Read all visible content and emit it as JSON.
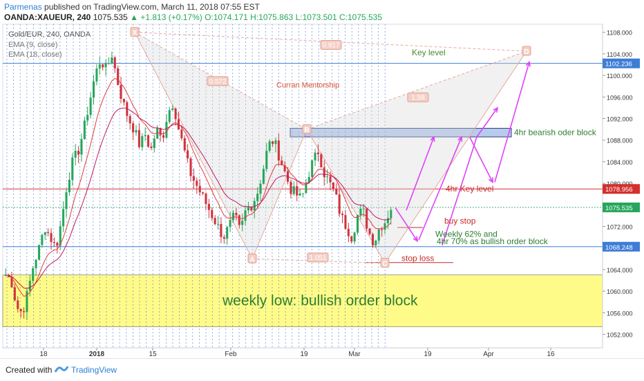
{
  "header": {
    "author": "Parmenas",
    "published_text": "published on TradingView.com, March 11, 2018 07:55 EST",
    "symbol": "OANDA:XAUEUR, 240",
    "last_price": "1075.535",
    "change": "+1.813 (+0.17%)",
    "ohlc": {
      "o": "O:1074.171",
      "h": "H:1075.863",
      "l": "L:1073.501",
      "c": "C:1075.535"
    }
  },
  "legend": {
    "title": "Gold/EUR, 240, OANDA",
    "ema9": "EMA (9, close)",
    "ema18": "EMA (18, close)"
  },
  "footer": {
    "created_with": "Created with",
    "brand": "TradingView"
  },
  "colors": {
    "bull": "#26a65b",
    "bear": "#d0333c",
    "ema9": "#e23b3b",
    "ema18": "#c2185b",
    "zone": "#fffb88",
    "bearish_zone": "#b7cbef",
    "blue_line": "#3d7dd6",
    "red_line": "#d32f2f",
    "arrow": "#e040fb",
    "dotted": "#3f6fd6"
  },
  "chart_data": {
    "type": "candlestick",
    "title": "Gold/EUR, 240, OANDA",
    "y_range": [
      1050,
      1109
    ],
    "y_ticks": [
      "1108.000",
      "1104.000",
      "1100.000",
      "1096.000",
      "1092.000",
      "1088.000",
      "1084.000",
      "1080.000",
      "1076.000",
      "1072.000",
      "1068.000",
      "1064.000",
      "1060.000",
      "1056.000",
      "1052.000"
    ],
    "x_ticks": [
      "18",
      "2018",
      "15",
      "Feb",
      "19",
      "Mar",
      "19",
      "Apr",
      "16"
    ],
    "price_labels": {
      "key_level": "1102.236",
      "resistance": "1078.956",
      "last": "1075.535",
      "support": "1068.248"
    },
    "price_path": [
      [
        1063.0,
        1062.0,
        1057.0,
        1056.0,
        1060.0,
        1065.0,
        1068.0,
        1072.0,
        1070.0,
        1068.0,
        1073.0,
        1080.0,
        1084.0,
        1086.0,
        1090.0,
        1095.0,
        1100.0,
        1103.0,
        1101.0,
        1104.0,
        1099.0,
        1095.0,
        1092.0,
        1090.0,
        1087.0,
        1089.0,
        1086.0,
        1090.0,
        1088.0,
        1093.0,
        1095.0,
        1090.0,
        1086.0,
        1082.0,
        1080.0,
        1078.0,
        1076.0,
        1074.0,
        1072.0,
        1070.0,
        1072.0,
        1074.0,
        1071.0,
        1075.0,
        1076.0,
        1078.0,
        1082.0,
        1087.0,
        1088.0,
        1085.0,
        1082.0,
        1079.0,
        1078.0,
        1077.0,
        1081.0,
        1084.0,
        1086.0,
        1082.0,
        1080.0,
        1078.0,
        1074.0,
        1072.0,
        1070.0,
        1074.0,
        1075.0,
        1071.0,
        1069.0,
        1072.0,
        1073.0,
        1075.5
      ]
    ],
    "annotations": {
      "key_level": "Key level",
      "mentorship": "Curran Mentorship",
      "bearish_block": "4hr bearish oder block",
      "key_level_4hr": "4hr Key level",
      "buy_stop": "buy stop",
      "weekly_line1": "Weekly 62% and",
      "weekly_line2": "4hr 70% as bullish order block",
      "stop_loss": "stop loss",
      "bullish_block": "weekly low: bullish order block",
      "harmonic_points": [
        "X",
        "A",
        "B",
        "C",
        "D"
      ],
      "ratios": [
        "0.572",
        "0.917",
        "1.58",
        "1.051"
      ]
    }
  }
}
